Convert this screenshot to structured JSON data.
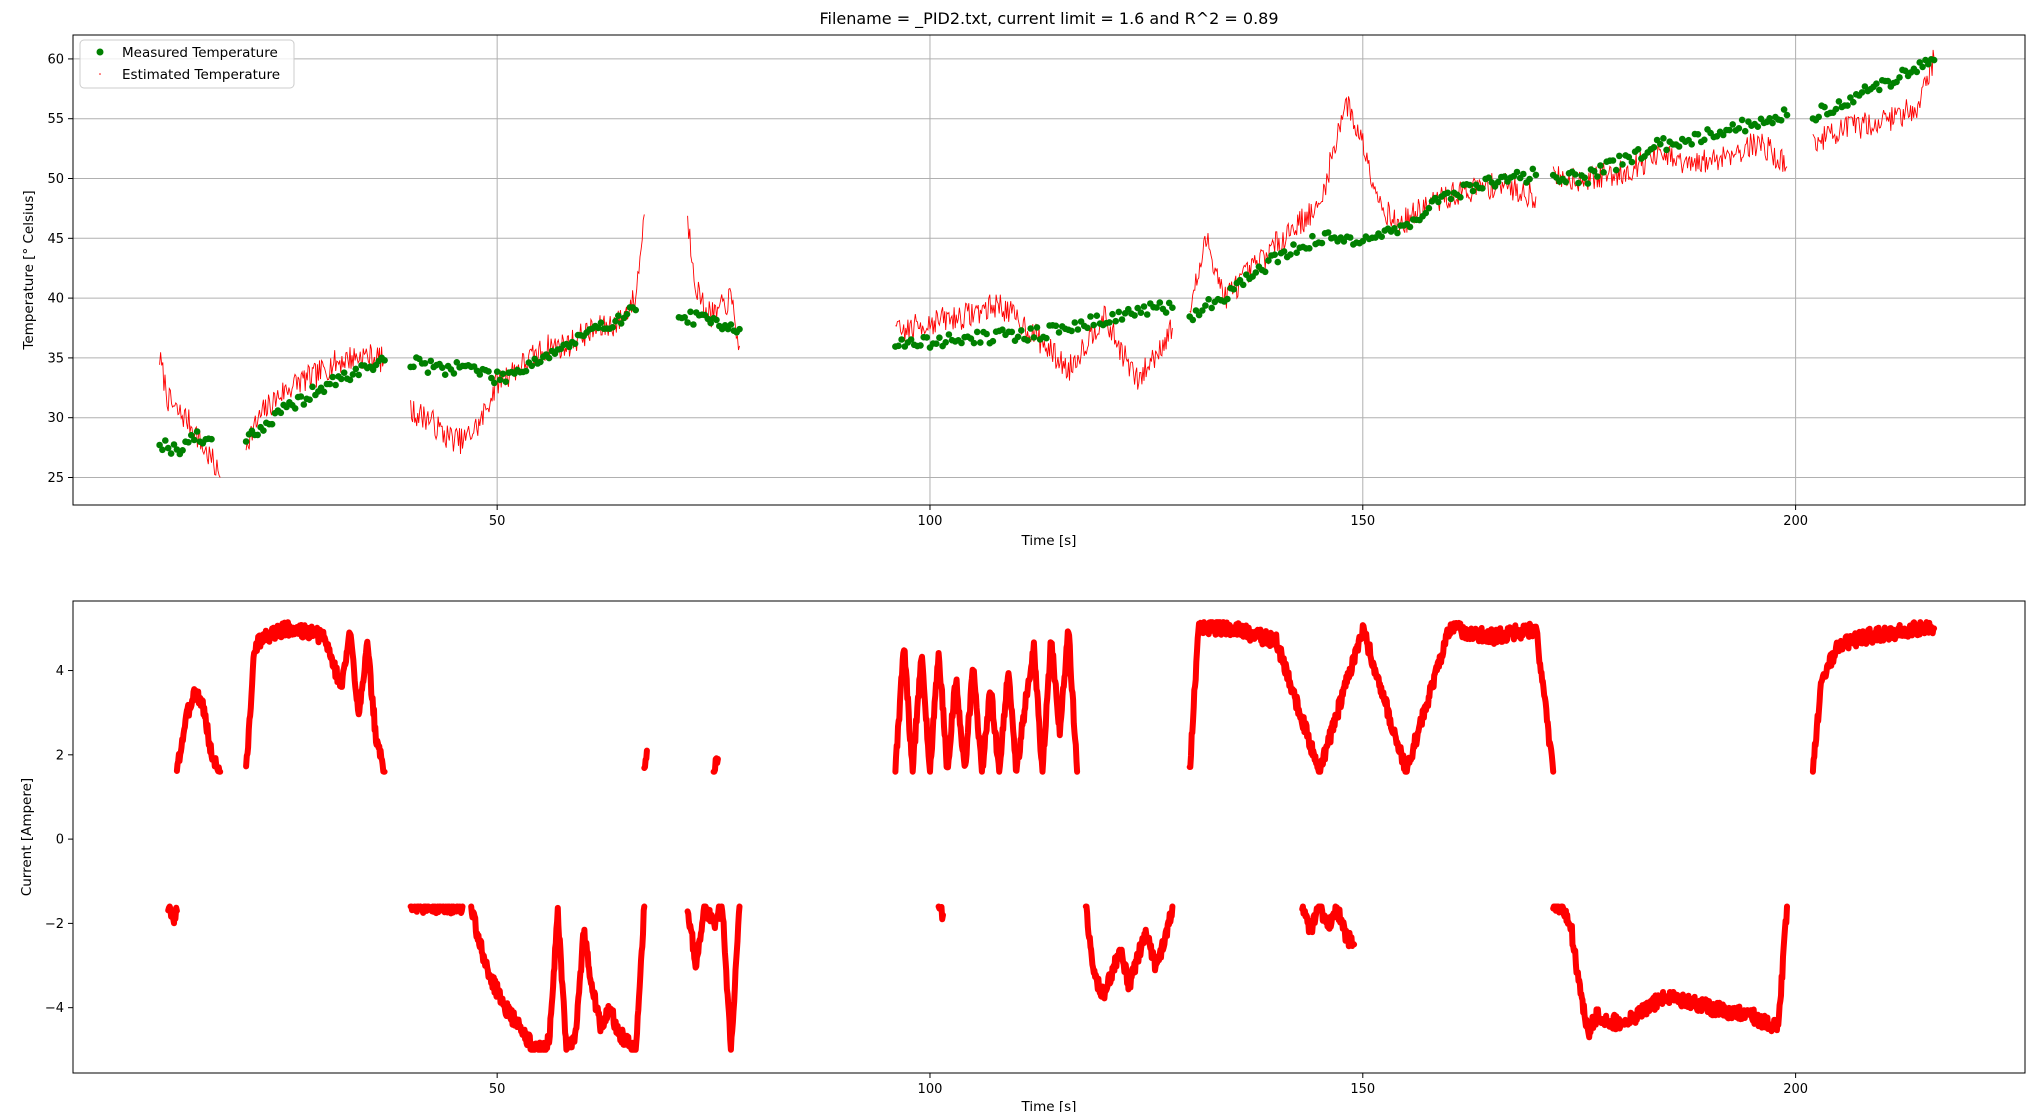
{
  "chart_data": [
    {
      "type": "scatter",
      "title": "Filename = _PID2.txt, current limit = 1.6 and R^2 = 0.89",
      "xlabel": "Time [s]",
      "ylabel": "Temperature [° Celsius]",
      "xlim": [
        1,
        226.5
      ],
      "ylim": [
        22.7,
        62.0
      ],
      "xticks": [
        50,
        100,
        150,
        200
      ],
      "yticks": [
        25,
        30,
        35,
        40,
        45,
        50,
        55,
        60
      ],
      "grid": true,
      "legend": "top-left",
      "colors": {
        "measured": "#008000",
        "estimated": "#ff0000"
      },
      "series": [
        {
          "name": "Measured Temperature",
          "marker": "circle",
          "color": "#008000",
          "segments": [
            {
              "x": [
                11,
                12,
                13,
                14,
                15,
                16,
                17
              ],
              "y": [
                28.0,
                27.6,
                27.3,
                27.8,
                28.5,
                28.0,
                28.2
              ]
            },
            {
              "x": [
                21,
                23,
                25,
                27,
                29,
                31,
                33,
                35,
                37
              ],
              "y": [
                28.5,
                29.2,
                30.4,
                31.3,
                32.2,
                32.9,
                33.6,
                34.2,
                34.8
              ]
            },
            {
              "x": [
                40,
                42,
                44,
                46,
                48,
                50,
                52,
                54,
                56,
                58,
                60,
                62,
                64,
                66
              ],
              "y": [
                34.7,
                34.3,
                34.1,
                34.4,
                33.9,
                33.3,
                33.8,
                34.6,
                35.3,
                36.0,
                36.8,
                37.5,
                38.3,
                39.0
              ]
            },
            {
              "x": [
                71,
                73,
                75,
                77,
                78
              ],
              "y": [
                38.5,
                38.3,
                38.0,
                37.8,
                37.4
              ]
            },
            {
              "x": [
                96,
                100,
                104,
                108,
                112,
                116,
                120,
                124,
                128
              ],
              "y": [
                36.1,
                36.3,
                36.6,
                36.8,
                37.0,
                37.5,
                38.2,
                38.9,
                39.2
              ]
            },
            {
              "x": [
                130,
                134,
                138,
                142,
                146,
                150,
                154,
                158,
                162,
                166,
                170
              ],
              "y": [
                38.5,
                40.2,
                42.4,
                44.2,
                45.0,
                45.0,
                45.6,
                47.8,
                49.2,
                49.9,
                50.3
              ]
            },
            {
              "x": [
                172,
                176,
                180,
                184,
                188,
                192,
                196,
                199
              ],
              "y": [
                50.2,
                50.1,
                51.5,
                52.7,
                53.4,
                54.1,
                54.8,
                55.3
              ]
            },
            {
              "x": [
                202,
                205,
                208,
                211,
                214,
                216
              ],
              "y": [
                55.3,
                56.2,
                57.2,
                58.2,
                59.2,
                59.9
              ]
            }
          ]
        },
        {
          "name": "Estimated Temperature",
          "marker": "pixel",
          "color": "#ff0000",
          "segments": [
            {
              "x": [
                11,
                12,
                13,
                14,
                15,
                16,
                17,
                18
              ],
              "y": [
                35.0,
                31.5,
                30.5,
                30.0,
                29.0,
                27.5,
                26.5,
                25.0
              ]
            },
            {
              "x": [
                21,
                23,
                25,
                27,
                29,
                31,
                33,
                35,
                37
              ],
              "y": [
                28.0,
                30.5,
                32.0,
                33.0,
                33.5,
                34.5,
                35.0,
                35.2,
                34.8
              ]
            },
            {
              "x": [
                40,
                42,
                44,
                46,
                48,
                50,
                52,
                54,
                56,
                58,
                60,
                62,
                64,
                66,
                67
              ],
              "y": [
                30.5,
                30.0,
                28.5,
                28.0,
                29.5,
                33.0,
                34.0,
                35.0,
                36.0,
                36.0,
                37.0,
                37.5,
                38.0,
                40.0,
                47.0
              ]
            },
            {
              "x": [
                72,
                73,
                74,
                75,
                77,
                78
              ],
              "y": [
                46.5,
                41.0,
                39.0,
                38.5,
                40.0,
                36.0
              ]
            },
            {
              "x": [
                96,
                100,
                104,
                108,
                112,
                116,
                120,
                124,
                128
              ],
              "y": [
                37.0,
                38.0,
                38.5,
                39.5,
                37.0,
                34.0,
                38.5,
                33.0,
                37.5
              ]
            },
            {
              "x": [
                130,
                132,
                134,
                138,
                142,
                145,
                148,
                150,
                152,
                154,
                158,
                162,
                166,
                170
              ],
              "y": [
                39.0,
                45.0,
                40.0,
                43.0,
                46.0,
                47.5,
                56.5,
                53.0,
                48.0,
                46.0,
                48.0,
                49.0,
                49.5,
                48.5
              ]
            },
            {
              "x": [
                172,
                176,
                180,
                184,
                188,
                192,
                196,
                199
              ],
              "y": [
                50.0,
                50.0,
                50.5,
                52.0,
                51.0,
                52.0,
                53.0,
                51.0
              ]
            },
            {
              "x": [
                202,
                205,
                208,
                211,
                214,
                216
              ],
              "y": [
                53.0,
                54.0,
                54.5,
                55.0,
                56.0,
                60.0
              ]
            }
          ]
        }
      ]
    },
    {
      "type": "scatter",
      "xlabel": "Time [s]",
      "ylabel": "Current [Ampere]",
      "xlim": [
        1,
        226.5
      ],
      "ylim": [
        -5.55,
        5.65
      ],
      "xticks": [
        50,
        100,
        150,
        200
      ],
      "yticks": [
        -4,
        -2,
        0,
        2,
        4
      ],
      "grid": false,
      "series": [
        {
          "name": "Current",
          "marker": "circle",
          "color": "#ff0000",
          "segments": [
            {
              "x": [
                12,
                12.5,
                13
              ],
              "y": [
                -1.6,
                -1.9,
                -1.7
              ]
            },
            {
              "x": [
                13,
                14,
                15,
                16,
                17,
                18
              ],
              "y": [
                1.6,
                2.8,
                3.5,
                3.2,
                2.0,
                1.6
              ]
            },
            {
              "x": [
                21,
                22,
                24,
                26,
                28,
                30,
                31,
                32,
                33,
                34,
                35,
                36,
                37
              ],
              "y": [
                1.6,
                4.6,
                4.9,
                5.0,
                4.9,
                4.8,
                4.2,
                3.6,
                4.9,
                3.0,
                4.6,
                2.4,
                1.6
              ]
            },
            {
              "x": [
                40,
                42,
                44,
                46
              ],
              "y": [
                -1.6,
                -1.6,
                -1.6,
                -1.6
              ]
            },
            {
              "x": [
                47,
                48,
                49,
                50,
                51,
                52,
                53,
                54,
                55,
                56,
                57,
                58,
                59,
                60,
                61,
                62,
                63,
                64,
                65,
                66,
                67
              ],
              "y": [
                -1.6,
                -2.5,
                -3.2,
                -3.6,
                -4.0,
                -4.3,
                -4.6,
                -4.9,
                -5.0,
                -4.8,
                -1.8,
                -5.0,
                -4.7,
                -2.2,
                -3.5,
                -4.5,
                -4.0,
                -4.6,
                -4.8,
                -5.0,
                -1.6
              ]
            },
            {
              "x": [
                67,
                67.3
              ],
              "y": [
                1.7,
                2.1
              ]
            },
            {
              "x": [
                72,
                73,
                74,
                75,
                76,
                77,
                78
              ],
              "y": [
                -1.6,
                -3.0,
                -1.6,
                -2.0,
                -1.6,
                -5.0,
                -1.6
              ]
            },
            {
              "x": [
                75,
                75.5
              ],
              "y": [
                1.7,
                1.9
              ]
            },
            {
              "x": [
                96,
                97,
                98,
                99,
                100,
                101,
                102,
                103,
                104,
                105,
                106,
                107,
                108,
                109,
                110,
                111,
                112,
                113,
                114,
                115,
                116,
                117
              ],
              "y": [
                1.6,
                4.6,
                1.6,
                4.4,
                1.6,
                4.5,
                1.6,
                3.8,
                1.6,
                4.1,
                1.6,
                3.6,
                1.6,
                4.0,
                1.6,
                3.2,
                4.5,
                1.6,
                4.8,
                2.5,
                5.0,
                1.6
              ]
            },
            {
              "x": [
                101,
                101.5
              ],
              "y": [
                -1.6,
                -1.8
              ]
            },
            {
              "x": [
                118,
                119,
                120,
                121,
                122,
                123,
                124,
                125,
                126,
                127,
                128
              ],
              "y": [
                -1.6,
                -3.2,
                -3.7,
                -3.2,
                -2.6,
                -3.5,
                -2.8,
                -2.2,
                -3.0,
                -2.5,
                -1.6
              ]
            },
            {
              "x": [
                130,
                131,
                135,
                140,
                145,
                150,
                155,
                160,
                165,
                170,
                172
              ],
              "y": [
                1.6,
                5.0,
                5.0,
                4.7,
                1.6,
                5.0,
                1.6,
                5.0,
                4.8,
                5.0,
                1.6
              ]
            },
            {
              "x": [
                143,
                144,
                145,
                146,
                147,
                148,
                149
              ],
              "y": [
                -1.6,
                -2.2,
                -1.6,
                -2.1,
                -1.6,
                -2.3,
                -2.5
              ]
            },
            {
              "x": [
                172,
                173,
                174,
                175,
                176,
                177,
                180,
                185,
                190,
                195,
                198,
                199
              ],
              "y": [
                -1.6,
                -1.6,
                -2.0,
                -3.5,
                -4.6,
                -4.2,
                -4.4,
                -3.7,
                -4.0,
                -4.2,
                -4.5,
                -1.6
              ]
            },
            {
              "x": [
                202,
                203,
                205,
                208,
                211,
                214,
                216
              ],
              "y": [
                1.6,
                3.8,
                4.6,
                4.8,
                4.9,
                5.0,
                5.0
              ]
            }
          ]
        }
      ]
    }
  ]
}
